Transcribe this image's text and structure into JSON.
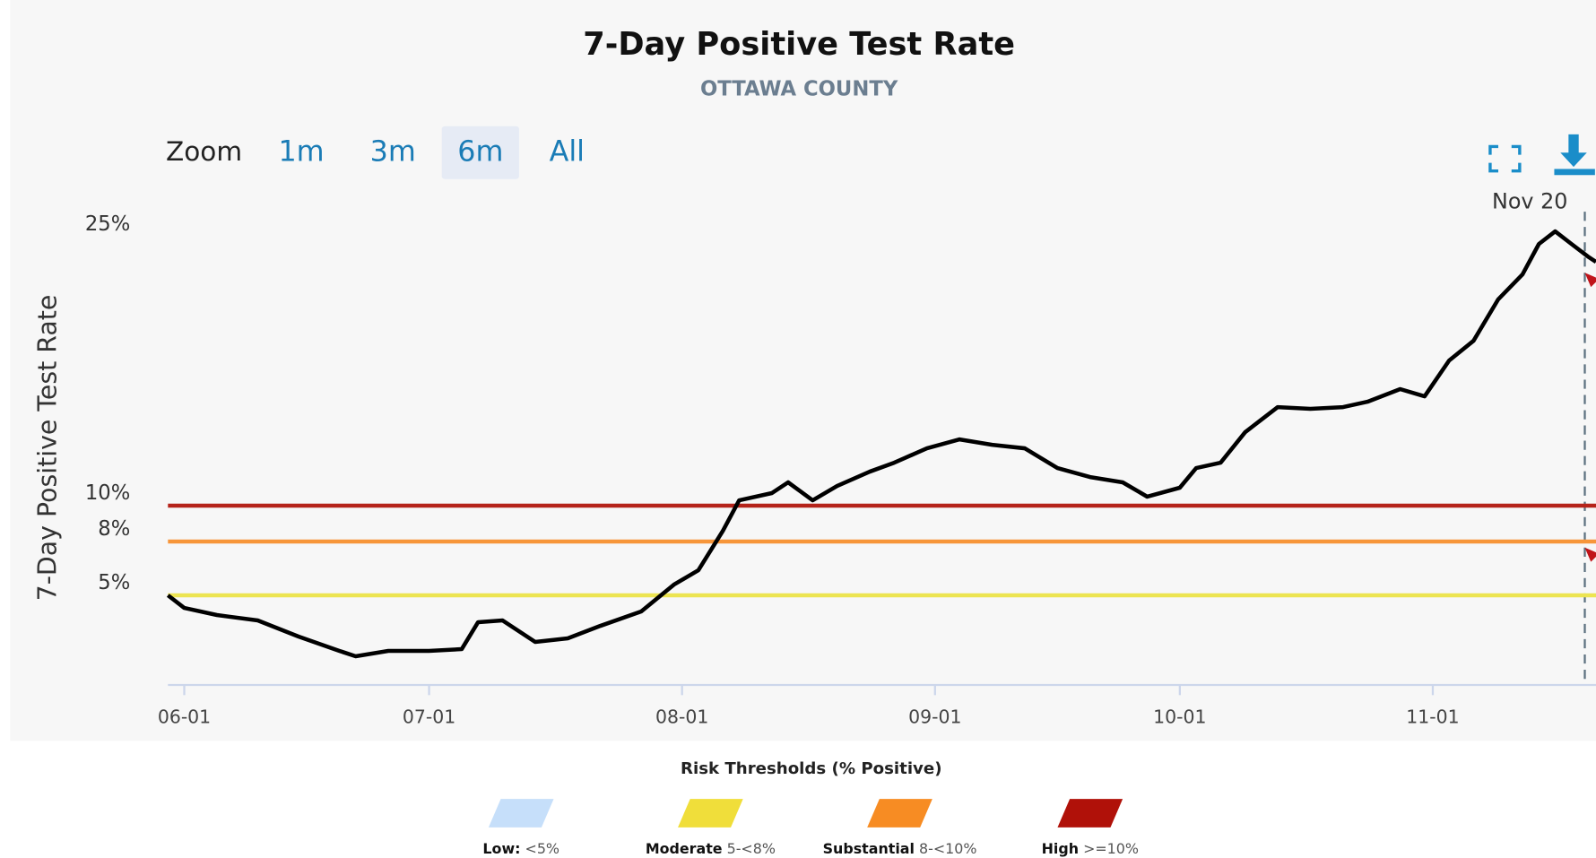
{
  "chart_data": {
    "type": "line",
    "title": "7-Day Positive Test Rate",
    "subtitle": "OTTAWA COUNTY",
    "y_axis_label": "7-Day Positive Test Rate",
    "zoom": {
      "label": "Zoom",
      "buttons": [
        "1m",
        "3m",
        "6m",
        "All"
      ],
      "selected": "6m"
    },
    "tooltip": "Nov 20",
    "x": [
      "05-30",
      "06-01",
      "06-05",
      "06-10",
      "06-15",
      "06-20",
      "06-22",
      "06-26",
      "07-01",
      "07-05",
      "07-07",
      "07-10",
      "07-14",
      "07-18",
      "07-22",
      "07-27",
      "07-31",
      "08-03",
      "08-06",
      "08-08",
      "08-12",
      "08-14",
      "08-17",
      "08-20",
      "08-24",
      "08-27",
      "08-31",
      "09-04",
      "09-08",
      "09-12",
      "09-16",
      "09-20",
      "09-24",
      "09-27",
      "10-01",
      "10-03",
      "10-06",
      "10-09",
      "10-13",
      "10-17",
      "10-21",
      "10-24",
      "10-28",
      "10-31",
      "11-03",
      "11-06",
      "11-09",
      "11-12",
      "11-14",
      "11-16",
      "11-18",
      "11-20",
      "11-21"
    ],
    "series": [
      {
        "name": "7-Day Positive Test Rate",
        "color": "#000000",
        "values": [
          5.0,
          4.3,
          3.9,
          3.6,
          2.7,
          1.9,
          1.6,
          1.9,
          1.9,
          2.0,
          3.5,
          3.6,
          2.4,
          2.6,
          3.3,
          4.1,
          5.6,
          6.4,
          8.6,
          10.3,
          10.7,
          11.3,
          10.3,
          11.1,
          11.9,
          12.4,
          13.2,
          13.7,
          13.4,
          13.2,
          12.1,
          11.6,
          11.3,
          10.5,
          11.0,
          12.1,
          12.4,
          14.1,
          15.5,
          15.4,
          15.5,
          15.8,
          16.5,
          16.1,
          18.1,
          19.2,
          21.5,
          22.9,
          24.6,
          25.3,
          24.6,
          23.9,
          23.6
        ]
      }
    ],
    "xlim": [
      "05-30",
      "11-21"
    ],
    "xticks": [
      "06-01",
      "07-01",
      "08-01",
      "09-01",
      "10-01",
      "11-01"
    ],
    "ylim": [
      0,
      26
    ],
    "yticks": [
      {
        "value": 5,
        "label": "5%"
      },
      {
        "value": 8,
        "label": "8%"
      },
      {
        "value": 10,
        "label": "10%"
      },
      {
        "value": 25,
        "label": "25%"
      }
    ],
    "thresholds": [
      {
        "value": 5,
        "color": "#ece451"
      },
      {
        "value": 8,
        "color": "#f7963a"
      },
      {
        "value": 10,
        "color": "#b5231a"
      }
    ],
    "legend": {
      "title": "Risk Thresholds (% Positive)",
      "items": [
        {
          "name": "Low:",
          "range": "<5%",
          "color": "#c6dffa"
        },
        {
          "name": "Moderate",
          "range": "5-<8%",
          "color": "#f0de3a"
        },
        {
          "name": "Substantial",
          "range": "8-<10%",
          "color": "#f78c23"
        },
        {
          "name": "High",
          "range": ">=10%",
          "color": "#b01109"
        }
      ]
    }
  }
}
